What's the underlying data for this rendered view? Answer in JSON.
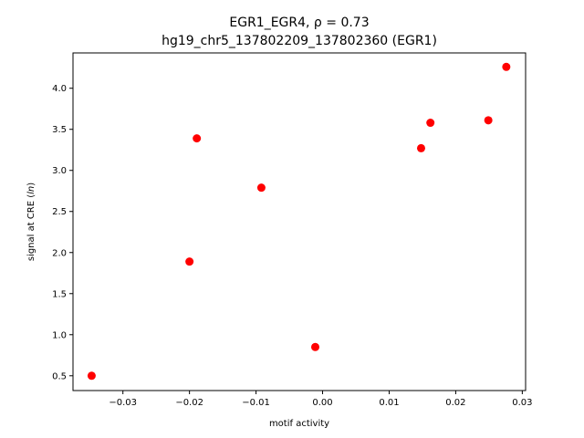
{
  "chart_data": {
    "type": "scatter",
    "title_line1": "EGR1_EGR4, ρ = 0.73",
    "title_line2": "hg19_chr5_137802209_137802360 (EGR1)",
    "xlabel": "motif activity",
    "ylabel": "signal at CRE (ln)",
    "xlim": [
      -0.0375,
      0.0305
    ],
    "ylim": [
      0.32,
      4.43
    ],
    "xticks": [
      -0.03,
      -0.02,
      -0.01,
      0.0,
      0.01,
      0.02,
      0.03
    ],
    "xtick_labels": [
      "−0.03",
      "−0.02",
      "−0.01",
      "0.00",
      "0.01",
      "0.02",
      "0.03"
    ],
    "yticks": [
      0.5,
      1.0,
      1.5,
      2.0,
      2.5,
      3.0,
      3.5,
      4.0
    ],
    "ytick_labels": [
      "0.5",
      "1.0",
      "1.5",
      "2.0",
      "2.5",
      "3.0",
      "3.5",
      "4.0"
    ],
    "grid": false,
    "point_color": "#ff0000",
    "points": [
      {
        "x": -0.0347,
        "y": 0.5
      },
      {
        "x": -0.02,
        "y": 1.89
      },
      {
        "x": -0.0189,
        "y": 3.39
      },
      {
        "x": -0.0092,
        "y": 2.79
      },
      {
        "x": -0.0011,
        "y": 0.85
      },
      {
        "x": 0.0148,
        "y": 3.27
      },
      {
        "x": 0.0162,
        "y": 3.58
      },
      {
        "x": 0.0249,
        "y": 3.61
      },
      {
        "x": 0.0276,
        "y": 4.26
      }
    ]
  }
}
